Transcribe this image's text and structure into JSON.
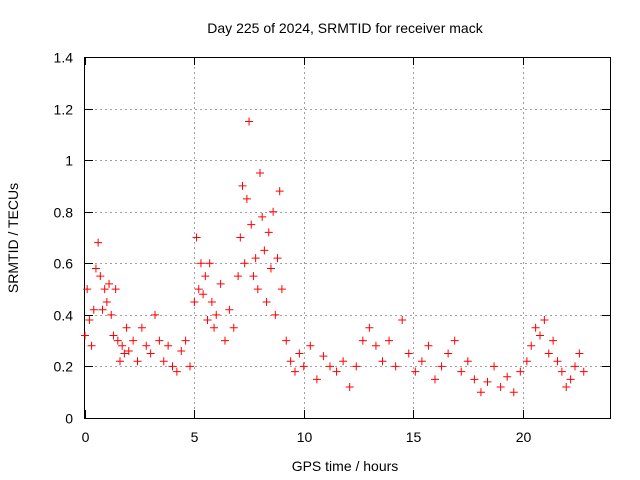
{
  "chart_data": {
    "type": "scatter",
    "title": "Day 225 of 2024, SRMTID for receiver mack",
    "xlabel": "GPS time / hours",
    "ylabel": "SRMTID / TECUs",
    "xlim": [
      0,
      24
    ],
    "ylim": [
      0,
      1.4
    ],
    "x_ticks": [
      0,
      5,
      10,
      15,
      20
    ],
    "y_ticks": [
      0,
      0.2,
      0.4,
      0.6,
      0.8,
      1,
      1.2,
      1.4
    ],
    "x_tick_labels": [
      "0",
      "5",
      "10",
      "15",
      "20"
    ],
    "y_tick_labels": [
      "0",
      "0.2",
      "0.4",
      "0.6",
      "0.8",
      "1",
      "1.2",
      "1.4"
    ],
    "grid": true,
    "marker": "+",
    "series_color": "#ff0000",
    "series": [
      {
        "name": "SRMTID",
        "x": [
          0.0,
          0.1,
          0.2,
          0.3,
          0.4,
          0.5,
          0.6,
          0.7,
          0.8,
          0.9,
          1.0,
          1.1,
          1.2,
          1.3,
          1.4,
          1.5,
          1.6,
          1.7,
          1.8,
          1.9,
          2.0,
          2.2,
          2.4,
          2.6,
          2.8,
          3.0,
          3.2,
          3.4,
          3.6,
          3.8,
          4.0,
          4.2,
          4.4,
          4.6,
          4.8,
          5.0,
          5.1,
          5.2,
          5.3,
          5.4,
          5.5,
          5.6,
          5.7,
          5.8,
          5.9,
          6.0,
          6.2,
          6.4,
          6.6,
          6.8,
          7.0,
          7.1,
          7.2,
          7.3,
          7.4,
          7.5,
          7.6,
          7.7,
          7.8,
          7.9,
          8.0,
          8.1,
          8.2,
          8.3,
          8.4,
          8.5,
          8.6,
          8.7,
          8.8,
          8.9,
          9.0,
          9.2,
          9.4,
          9.6,
          9.8,
          10.0,
          10.3,
          10.6,
          10.9,
          11.2,
          11.5,
          11.8,
          12.1,
          12.4,
          12.7,
          13.0,
          13.3,
          13.6,
          13.9,
          14.2,
          14.5,
          14.8,
          15.1,
          15.4,
          15.7,
          16.0,
          16.3,
          16.6,
          16.9,
          17.2,
          17.5,
          17.8,
          18.1,
          18.4,
          18.7,
          19.0,
          19.3,
          19.6,
          19.9,
          20.2,
          20.4,
          20.6,
          20.8,
          21.0,
          21.2,
          21.4,
          21.6,
          21.8,
          22.0,
          22.2,
          22.4,
          22.6,
          22.8
        ],
        "y": [
          0.32,
          0.5,
          0.38,
          0.28,
          0.42,
          0.58,
          0.68,
          0.55,
          0.42,
          0.5,
          0.45,
          0.52,
          0.4,
          0.32,
          0.5,
          0.3,
          0.22,
          0.28,
          0.25,
          0.35,
          0.26,
          0.3,
          0.22,
          0.35,
          0.28,
          0.25,
          0.4,
          0.3,
          0.22,
          0.28,
          0.2,
          0.18,
          0.26,
          0.3,
          0.2,
          0.45,
          0.7,
          0.5,
          0.6,
          0.48,
          0.55,
          0.38,
          0.6,
          0.45,
          0.35,
          0.4,
          0.52,
          0.3,
          0.42,
          0.35,
          0.55,
          0.7,
          0.9,
          0.6,
          0.85,
          1.15,
          0.75,
          0.55,
          0.62,
          0.5,
          0.95,
          0.78,
          0.65,
          0.45,
          0.72,
          0.58,
          0.8,
          0.4,
          0.62,
          0.88,
          0.5,
          0.3,
          0.22,
          0.18,
          0.25,
          0.2,
          0.28,
          0.15,
          0.24,
          0.2,
          0.18,
          0.22,
          0.12,
          0.2,
          0.3,
          0.35,
          0.28,
          0.22,
          0.3,
          0.2,
          0.38,
          0.25,
          0.18,
          0.22,
          0.28,
          0.15,
          0.2,
          0.25,
          0.3,
          0.18,
          0.22,
          0.15,
          0.1,
          0.14,
          0.2,
          0.12,
          0.16,
          0.1,
          0.18,
          0.22,
          0.28,
          0.35,
          0.32,
          0.38,
          0.25,
          0.3,
          0.22,
          0.18,
          0.12,
          0.15,
          0.2,
          0.25,
          0.18
        ]
      }
    ]
  }
}
